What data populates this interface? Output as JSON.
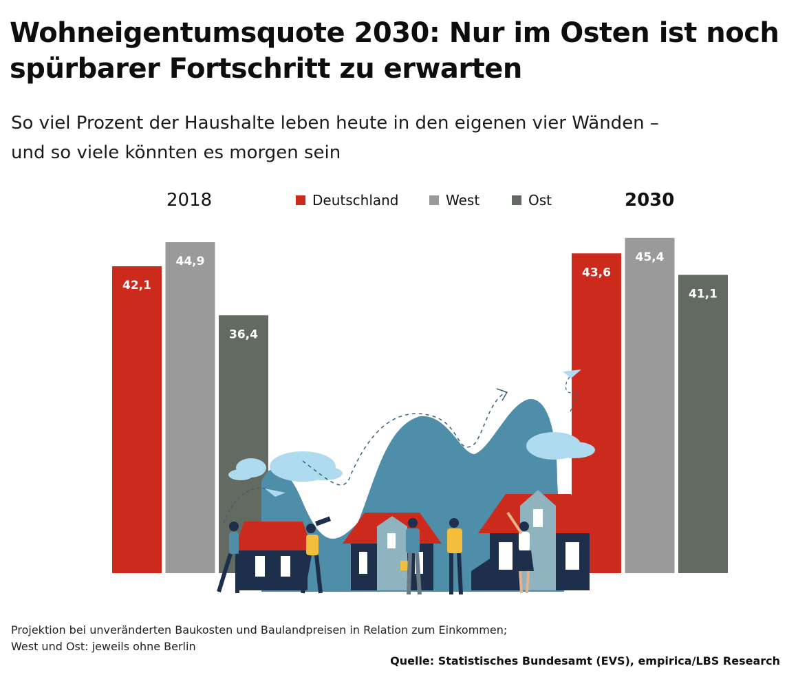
{
  "title": "Wohneigentumsquote 2030: Nur im Osten ist noch spürbarer Fortschritt zu erwarten",
  "subtitle_line1": "So viel Prozent der Haushalte leben heute in den eigenen vier Wänden –",
  "subtitle_line2": "und so viele könnten es morgen sein",
  "footnote_line1": "Projektion bei unveränderten Baukosten und Baulandpreisen in Relation zum Einkommen;",
  "footnote_line2": "West und Ost: jeweils ohne Berlin",
  "source": "Quelle: Statistisches Bundesamt (EVS), empirica/LBS Research",
  "colors": {
    "deutschland": "#cc2a1c",
    "west": "#9a9a9a",
    "ost": "#636a62",
    "mountain": "#4f8ea8",
    "cloud": "#aedbf0",
    "roof": "#cc2a1c",
    "house_dark": "#1d2f4a",
    "house_light": "#8fb3bf"
  },
  "chart_data": {
    "type": "bar",
    "categories": [
      "2018",
      "2030"
    ],
    "series": [
      {
        "name": "Deutschland",
        "values": [
          42.1,
          43.6
        ],
        "labels": [
          "42,1",
          "43,6"
        ]
      },
      {
        "name": "West",
        "values": [
          44.9,
          45.4
        ],
        "labels": [
          "44,9",
          "45,4"
        ]
      },
      {
        "name": "Ost",
        "values": [
          36.4,
          41.1
        ],
        "labels": [
          "36,4",
          "41,1"
        ]
      }
    ],
    "legend": "top-center",
    "grid": false
  }
}
